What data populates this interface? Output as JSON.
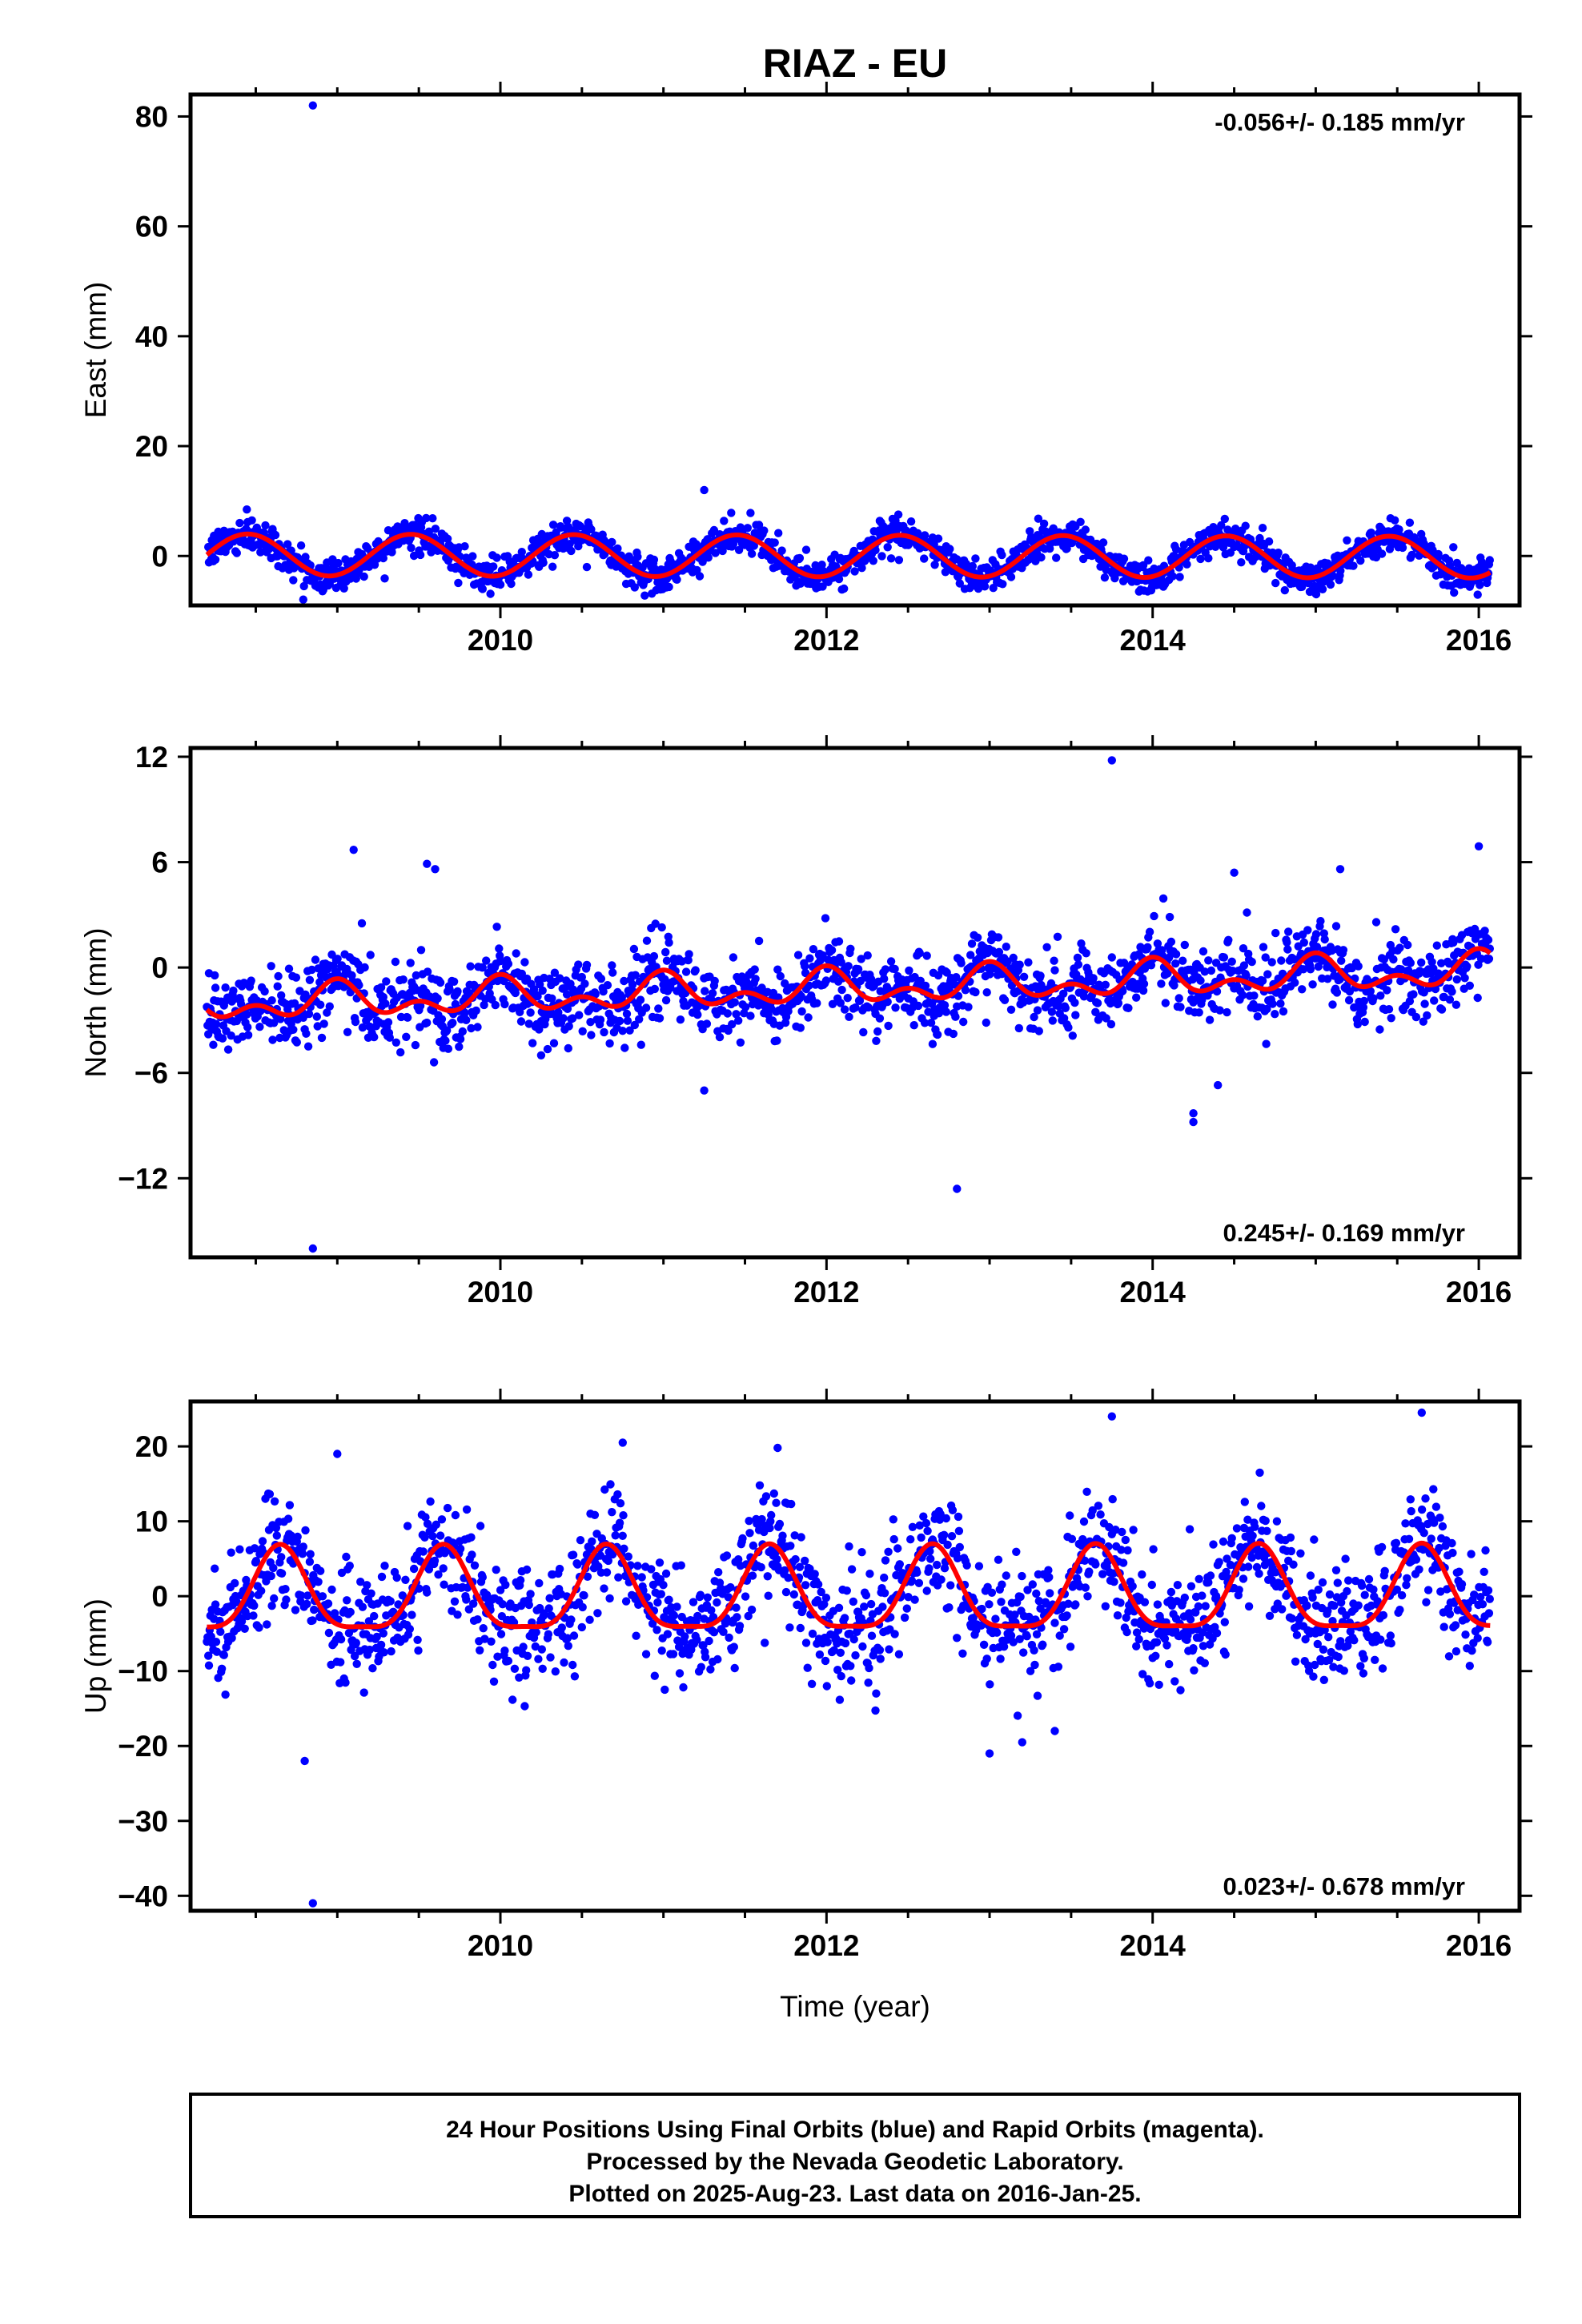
{
  "title": "RIAZ - EU",
  "x_axis_label": "Time (year)",
  "footer": {
    "line1": "24 Hour Positions Using Final Orbits (blue) and Rapid Orbits (magenta).",
    "line2": "Processed by the Nevada Geodetic Laboratory.",
    "line3": "Plotted on 2025-Aug-23. Last data on 2016-Jan-25."
  },
  "colors": {
    "points": "#0000ff",
    "model": "#ff0000",
    "frame": "#000000"
  },
  "chart_data": [
    {
      "type": "scatter",
      "ylabel": "East (mm)",
      "rate_text": "-0.056+/- 0.185 mm/yr",
      "rate_position": "top-right",
      "xlim": [
        2008.1,
        2016.25
      ],
      "ylim": [
        -9,
        84
      ],
      "xticks": [
        2010,
        2012,
        2014,
        2016
      ],
      "xtick_labels": [
        "2010",
        "2012",
        "2014",
        "2016"
      ],
      "yticks": [
        0,
        20,
        40,
        60,
        80
      ],
      "ytick_labels": [
        "0",
        "20",
        "40",
        "60",
        "80"
      ],
      "start": 2008.2,
      "end": 2016.07,
      "trend_mm_per_yr": -0.056,
      "intercept": 0.0,
      "annual_amplitude": 3.8,
      "annual_peak_year_fraction": 0.45,
      "scatter_sigma": 1.5,
      "outliers": [
        [
          2008.85,
          82
        ],
        [
          2011.25,
          12
        ]
      ]
    },
    {
      "type": "scatter",
      "ylabel": "North (mm)",
      "rate_text": "0.245+/- 0.169 mm/yr",
      "rate_position": "bottom-right",
      "xlim": [
        2008.1,
        2016.25
      ],
      "ylim": [
        -16.5,
        12.5
      ],
      "xticks": [
        2010,
        2012,
        2014,
        2016
      ],
      "xtick_labels": [
        "2010",
        "2012",
        "2014",
        "2016"
      ],
      "yticks": [
        -12,
        -6,
        0,
        6,
        12
      ],
      "ytick_labels": [
        "−12",
        "−6",
        "0",
        "6",
        "12"
      ],
      "start": 2008.2,
      "end": 2016.07,
      "trend_mm_per_yr": 0.245,
      "intercept": -1.2,
      "annual_amplitude": 0.7,
      "annual_peak_year_fraction": 0.0,
      "semiannual_amplitude": 0.6,
      "scatter_sigma": 1.1,
      "outliers": [
        [
          2008.85,
          -16
        ],
        [
          2011.25,
          -7
        ],
        [
          2012.8,
          -12.6
        ],
        [
          2013.75,
          11.8
        ],
        [
          2014.25,
          -8.3
        ],
        [
          2014.25,
          -8.8
        ],
        [
          2014.4,
          -6.7
        ],
        [
          2014.5,
          5.4
        ],
        [
          2010.25,
          -5.0
        ],
        [
          2009.1,
          6.7
        ],
        [
          2009.55,
          5.9
        ],
        [
          2009.6,
          5.6
        ],
        [
          2015.15,
          5.6
        ],
        [
          2016.0,
          6.9
        ]
      ]
    },
    {
      "type": "scatter",
      "ylabel": "Up (mm)",
      "rate_text": "0.023+/- 0.678 mm/yr",
      "rate_position": "bottom-right",
      "xlim": [
        2008.1,
        2016.25
      ],
      "ylim": [
        -42,
        26
      ],
      "xticks": [
        2010,
        2012,
        2014,
        2016
      ],
      "xtick_labels": [
        "2010",
        "2012",
        "2014",
        "2016"
      ],
      "yticks": [
        -40,
        -30,
        -20,
        -10,
        0,
        10,
        20
      ],
      "ytick_labels": [
        "−40",
        "−30",
        "−20",
        "−10",
        "0",
        "10",
        "20"
      ],
      "start": 2008.2,
      "end": 2016.07,
      "trend_mm_per_yr": 0.023,
      "intercept": 0.0,
      "annual_amplitude": 5.5,
      "annual_peak_year_fraction": 0.65,
      "semiannual_amplitude": 1.5,
      "scatter_sigma": 3.8,
      "outliers": [
        [
          2008.85,
          -41
        ],
        [
          2008.8,
          -22
        ],
        [
          2013.0,
          -21
        ],
        [
          2013.2,
          -19.5
        ],
        [
          2013.4,
          -18
        ],
        [
          2013.75,
          24
        ],
        [
          2015.65,
          24.5
        ],
        [
          2010.75,
          20.5
        ],
        [
          2011.7,
          19.8
        ],
        [
          2009.0,
          19
        ]
      ]
    }
  ]
}
